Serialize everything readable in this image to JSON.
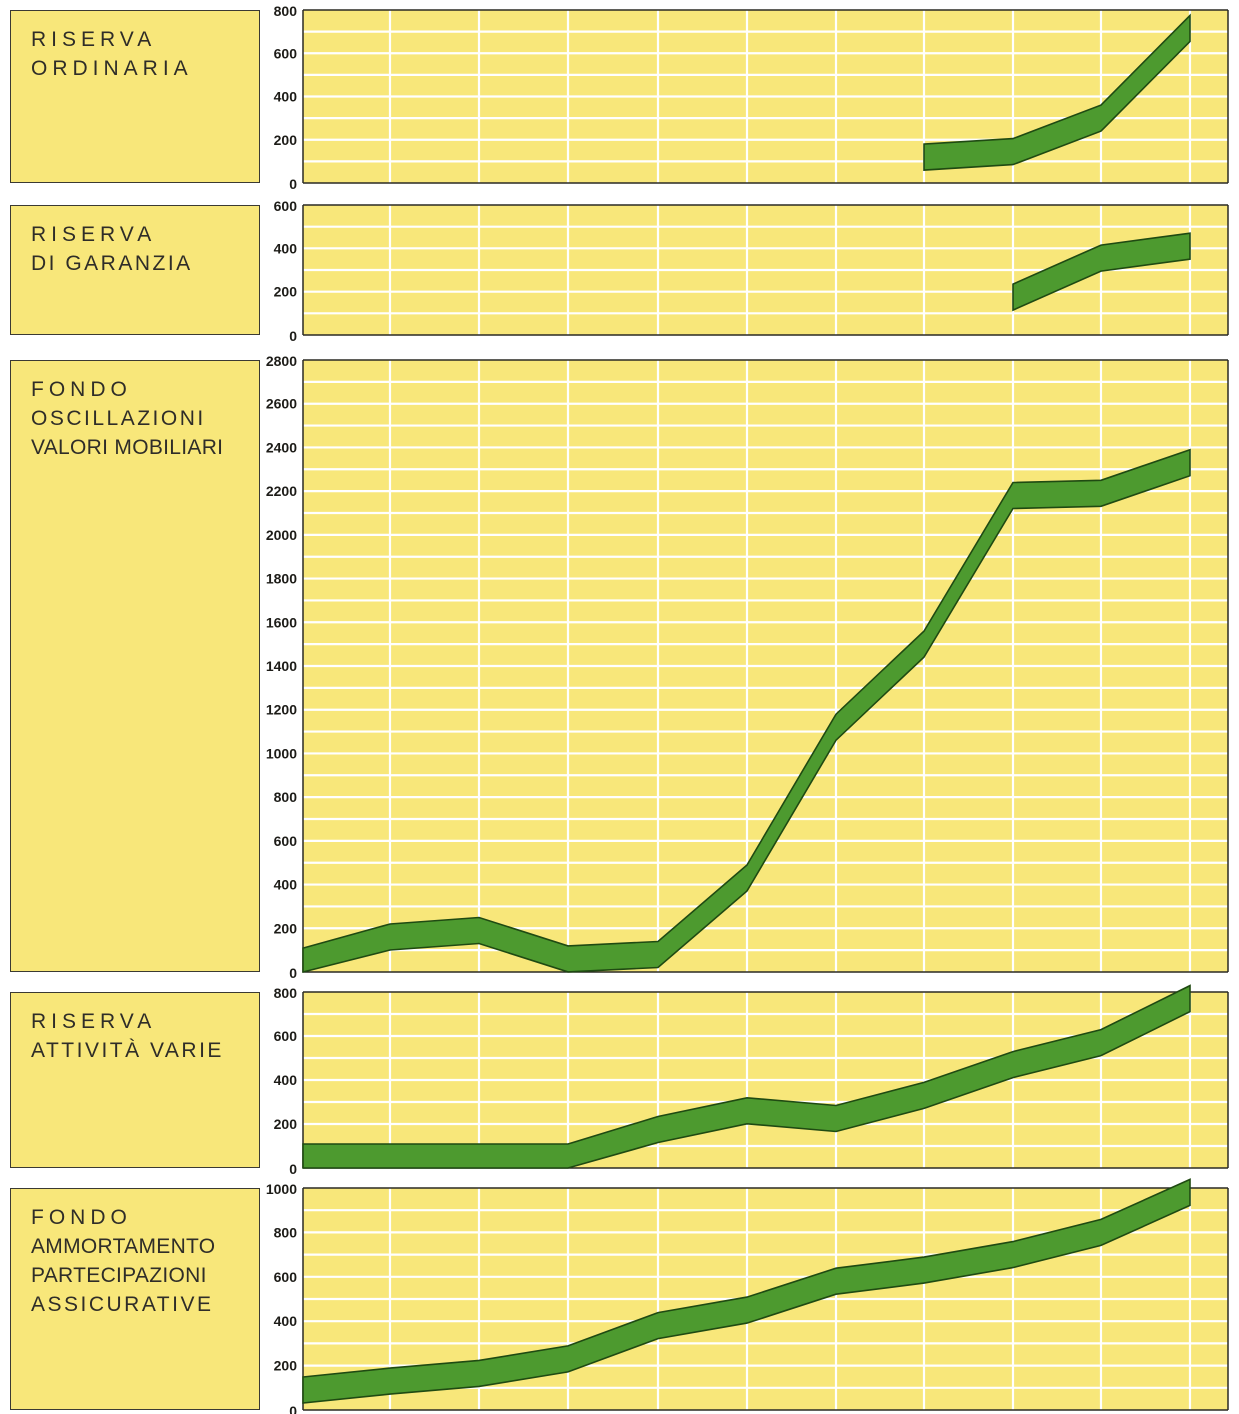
{
  "colors": {
    "panel_bg": "#f8e77a",
    "grid": "#ffffff",
    "band_fill": "#4d9a2f",
    "band_edge": "#1f4a12",
    "axis": "#2a2a24"
  },
  "chart_data": [
    {
      "type": "line",
      "title_lines": [
        "RISERVA",
        "ORDINARIA"
      ],
      "ylim": [
        0,
        800
      ],
      "yticks": [
        0,
        200,
        400,
        600,
        800
      ],
      "x": [
        1,
        2,
        3,
        4,
        5,
        6,
        7,
        8,
        9,
        10,
        11
      ],
      "series": [
        {
          "values": [
            null,
            null,
            null,
            null,
            null,
            null,
            null,
            120,
            145,
            300,
            715
          ]
        }
      ]
    },
    {
      "type": "line",
      "title_lines": [
        "RISERVA",
        "DI GARANZIA"
      ],
      "ylim": [
        0,
        600
      ],
      "yticks": [
        0,
        200,
        400,
        600
      ],
      "x": [
        1,
        2,
        3,
        4,
        5,
        6,
        7,
        8,
        9,
        10,
        11
      ],
      "series": [
        {
          "values": [
            null,
            null,
            null,
            null,
            null,
            null,
            null,
            null,
            175,
            355,
            410
          ]
        }
      ]
    },
    {
      "type": "line",
      "title_lines": [
        "FONDO",
        "OSCILLAZIONI",
        "VALORI MOBILIARI"
      ],
      "ylim": [
        0,
        2800
      ],
      "yticks": [
        0,
        200,
        400,
        600,
        800,
        1000,
        1200,
        1400,
        1600,
        1800,
        2000,
        2200,
        2400,
        2600,
        2800
      ],
      "x": [
        1,
        2,
        3,
        4,
        5,
        6,
        7,
        8,
        9,
        10,
        11
      ],
      "series": [
        {
          "values": [
            50,
            160,
            190,
            60,
            80,
            430,
            1120,
            1500,
            2180,
            2190,
            2330
          ]
        }
      ]
    },
    {
      "type": "line",
      "title_lines": [
        "RISERVA",
        "ATTIVITÀ VARIE"
      ],
      "ylim": [
        0,
        800
      ],
      "yticks": [
        0,
        200,
        400,
        600,
        800
      ],
      "x": [
        1,
        2,
        3,
        4,
        5,
        6,
        7,
        8,
        9,
        10,
        11
      ],
      "series": [
        {
          "values": [
            50,
            50,
            50,
            50,
            175,
            260,
            225,
            330,
            470,
            570,
            770
          ]
        }
      ]
    },
    {
      "type": "line",
      "title_lines": [
        "FONDO",
        "AMMORTAMENTO",
        "PARTECIPAZIONI",
        "ASSICURATIVE"
      ],
      "ylim": [
        0,
        1000
      ],
      "yticks": [
        0,
        200,
        400,
        600,
        800,
        1000
      ],
      "x": [
        1,
        2,
        3,
        4,
        5,
        6,
        7,
        8,
        9,
        10,
        11
      ],
      "series": [
        {
          "values": [
            90,
            130,
            165,
            230,
            380,
            450,
            580,
            630,
            700,
            800,
            980
          ]
        }
      ]
    }
  ]
}
